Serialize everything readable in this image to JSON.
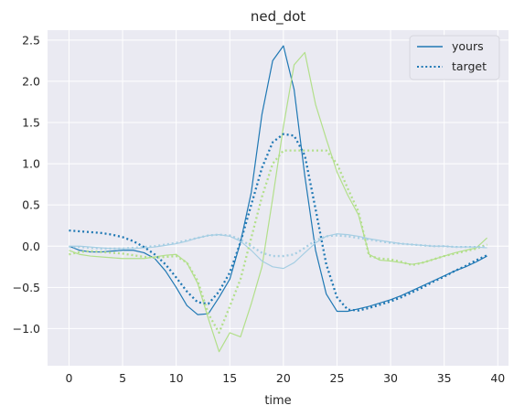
{
  "chart_data": {
    "type": "line",
    "title": "ned_dot",
    "xlabel": "time",
    "ylabel": "",
    "xlim": [
      -2,
      41
    ],
    "ylim": [
      -1.45,
      2.62
    ],
    "xticks": [
      0,
      5,
      10,
      15,
      20,
      25,
      30,
      35,
      40
    ],
    "yticks": [
      -1.0,
      -0.5,
      0.0,
      0.5,
      1.0,
      1.5,
      2.0,
      2.5
    ],
    "ytick_labels": [
      "−1.0",
      "−0.5",
      "0.0",
      "0.5",
      "1.0",
      "1.5",
      "2.0",
      "2.5"
    ],
    "grid": true,
    "legend": {
      "placement": "top-right",
      "entries": [
        {
          "label": "yours",
          "style": "solid",
          "color": "#1f78b4"
        },
        {
          "label": "target",
          "style": "dotted",
          "color": "#1f78b4"
        }
      ]
    },
    "x": [
      0,
      1,
      2,
      3,
      4,
      5,
      6,
      7,
      8,
      9,
      10,
      11,
      12,
      13,
      14,
      15,
      16,
      17,
      18,
      19,
      20,
      21,
      22,
      23,
      24,
      25,
      26,
      27,
      28,
      29,
      30,
      31,
      32,
      33,
      34,
      35,
      36,
      37,
      38,
      39
    ],
    "series": [
      {
        "role": "yours",
        "color": "#1f78b4",
        "style": "solid",
        "width": 1.2,
        "values": [
          0.0,
          -0.05,
          -0.07,
          -0.07,
          -0.06,
          -0.05,
          -0.05,
          -0.08,
          -0.15,
          -0.3,
          -0.5,
          -0.72,
          -0.83,
          -0.82,
          -0.62,
          -0.4,
          0.05,
          0.65,
          1.6,
          2.25,
          2.43,
          1.9,
          0.85,
          -0.05,
          -0.58,
          -0.79,
          -0.79,
          -0.76,
          -0.73,
          -0.69,
          -0.65,
          -0.6,
          -0.54,
          -0.48,
          -0.42,
          -0.36,
          -0.3,
          -0.25,
          -0.19,
          -0.12
        ]
      },
      {
        "role": "target",
        "color": "#1f78b4",
        "style": "dotted",
        "width": 2.3,
        "values": [
          0.19,
          0.18,
          0.17,
          0.16,
          0.14,
          0.11,
          0.06,
          -0.01,
          -0.1,
          -0.22,
          -0.38,
          -0.55,
          -0.68,
          -0.7,
          -0.55,
          -0.32,
          0.05,
          0.5,
          0.95,
          1.26,
          1.36,
          1.34,
          1.1,
          0.45,
          -0.22,
          -0.62,
          -0.77,
          -0.78,
          -0.75,
          -0.71,
          -0.67,
          -0.62,
          -0.56,
          -0.5,
          -0.43,
          -0.37,
          -0.3,
          -0.24,
          -0.17,
          -0.11
        ]
      },
      {
        "role": "yours",
        "color": "#b2df8a",
        "style": "solid",
        "width": 1.2,
        "values": [
          -0.05,
          -0.1,
          -0.12,
          -0.13,
          -0.14,
          -0.15,
          -0.15,
          -0.15,
          -0.13,
          -0.11,
          -0.1,
          -0.2,
          -0.45,
          -0.88,
          -1.28,
          -1.05,
          -1.1,
          -0.7,
          -0.25,
          0.58,
          1.45,
          2.2,
          2.35,
          1.72,
          1.3,
          0.9,
          0.62,
          0.38,
          -0.1,
          -0.17,
          -0.18,
          -0.2,
          -0.22,
          -0.2,
          -0.16,
          -0.12,
          -0.08,
          -0.05,
          -0.02,
          0.1
        ]
      },
      {
        "role": "target",
        "color": "#b2df8a",
        "style": "dotted",
        "width": 2.3,
        "values": [
          -0.1,
          -0.07,
          -0.06,
          -0.07,
          -0.08,
          -0.09,
          -0.11,
          -0.13,
          -0.14,
          -0.13,
          -0.12,
          -0.2,
          -0.42,
          -0.82,
          -1.05,
          -0.73,
          -0.4,
          0.1,
          0.6,
          1.0,
          1.16,
          1.16,
          1.16,
          1.16,
          1.16,
          1.0,
          0.7,
          0.42,
          -0.12,
          -0.15,
          -0.16,
          -0.19,
          -0.23,
          -0.2,
          -0.16,
          -0.12,
          -0.09,
          -0.06,
          -0.03,
          0.02
        ]
      },
      {
        "role": "yours",
        "color": "#a6cee3",
        "style": "solid",
        "width": 1.2,
        "values": [
          0.0,
          0.0,
          -0.01,
          -0.02,
          -0.03,
          -0.03,
          -0.03,
          -0.02,
          -0.01,
          0.01,
          0.03,
          0.06,
          0.1,
          0.13,
          0.14,
          0.12,
          0.06,
          -0.05,
          -0.18,
          -0.25,
          -0.27,
          -0.2,
          -0.08,
          0.04,
          0.12,
          0.15,
          0.14,
          0.12,
          0.09,
          0.07,
          0.05,
          0.03,
          0.02,
          0.01,
          0.0,
          0.0,
          -0.01,
          -0.01,
          -0.01,
          -0.02
        ]
      },
      {
        "role": "target",
        "color": "#a6cee3",
        "style": "dotted",
        "width": 2.3,
        "values": [
          -0.01,
          -0.01,
          -0.02,
          -0.03,
          -0.03,
          -0.03,
          -0.02,
          -0.01,
          0.0,
          0.02,
          0.04,
          0.07,
          0.1,
          0.13,
          0.14,
          0.13,
          0.08,
          0.0,
          -0.08,
          -0.12,
          -0.12,
          -0.1,
          -0.02,
          0.07,
          0.12,
          0.13,
          0.12,
          0.1,
          0.08,
          0.06,
          0.04,
          0.03,
          0.02,
          0.01,
          0.0,
          0.0,
          -0.01,
          -0.01,
          -0.01,
          -0.01
        ]
      }
    ]
  }
}
